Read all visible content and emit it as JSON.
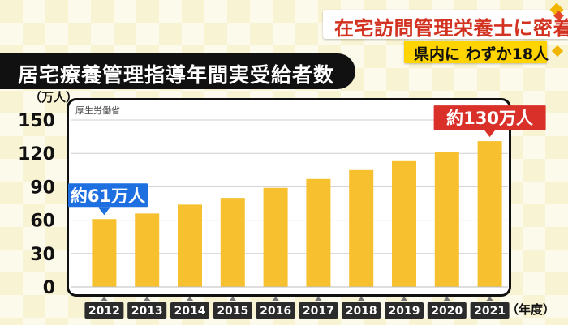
{
  "header": {
    "headline": "在宅訪問管理栄養士に密着",
    "subhead": "県内に わずか18人"
  },
  "chart_data": {
    "type": "bar",
    "title": "居宅療養管理指導年間実受給者数",
    "source": "厚生労働省",
    "ylabel": "（万人）",
    "xlabel": "（年度）",
    "categories": [
      "2012",
      "2013",
      "2014",
      "2015",
      "2016",
      "2017",
      "2018",
      "2019",
      "2020",
      "2021"
    ],
    "values": [
      61,
      66,
      74,
      80,
      89,
      97,
      105,
      113,
      121,
      131
    ],
    "ylim": [
      0,
      150
    ],
    "yticks": [
      "0",
      "30",
      "60",
      "90",
      "120",
      "150"
    ],
    "grid": true,
    "annotations": [
      {
        "category": "2012",
        "text": "約61万人",
        "color": "#1e6fe0"
      },
      {
        "category": "2021",
        "text": "約130万人",
        "color": "#d9302a"
      }
    ],
    "bar_color": "#f6c02f"
  }
}
